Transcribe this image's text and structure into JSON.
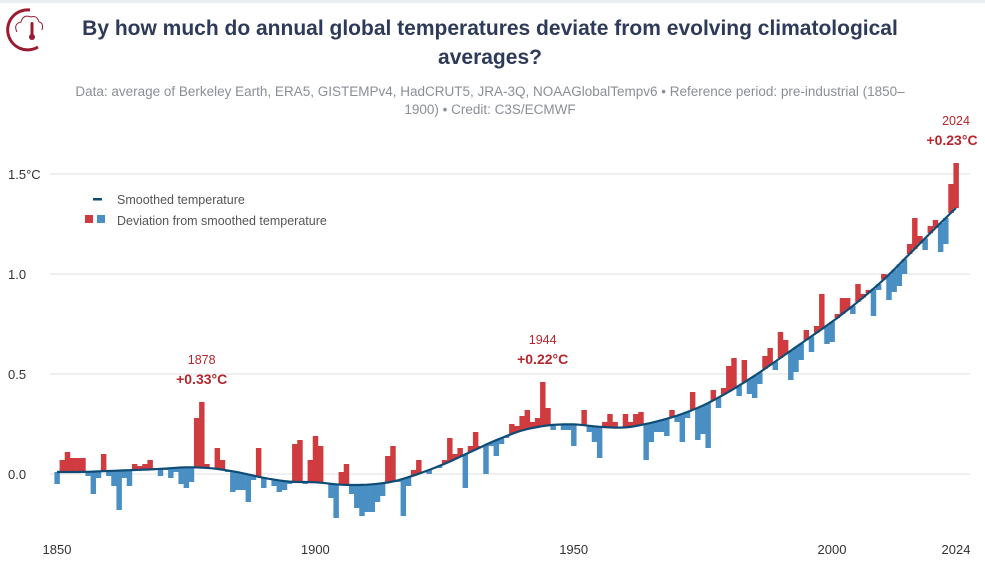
{
  "title_lines": [
    "By how much do annual global temperatures deviate from evolving climatological",
    "averages?"
  ],
  "subtitle_lines": [
    "Data: average of Berkeley Earth, ERA5, GISTEMPv4, HadCRUT5, JRA-3Q, NOAAGlobalTempv6 • Reference period: pre-industrial (1850–",
    "1900) • Credit: C3S/ECMWF"
  ],
  "colors": {
    "above": "#d03b3f",
    "below": "#4a8fc4",
    "smoothed": "#0f4c75",
    "title": "#2e3a59",
    "logo": "#9b1b30"
  },
  "logo_icon": "cloud-thermometer-icon",
  "chart_data": {
    "type": "bar",
    "xlabel": "",
    "ylabel": "",
    "xlim": [
      1850,
      2024
    ],
    "ylim": [
      -0.25,
      1.6
    ],
    "x_ticks": [
      "1850",
      "1900",
      "1950",
      "2000",
      "2024"
    ],
    "y_ticks": [
      {
        "value": 0,
        "label": "0.0"
      },
      {
        "value": 0.5,
        "label": "0.5"
      },
      {
        "value": 1.0,
        "label": "1.0"
      },
      {
        "value": 1.5,
        "label": "1.5°C"
      }
    ],
    "grid": true,
    "legend_placement": "top-left",
    "legend": {
      "smoothed": "Smoothed temperature",
      "deviation": "Deviation from smoothed temperature"
    },
    "start_year": 1850,
    "annual_anomaly": [
      -0.05,
      0.07,
      0.11,
      0.08,
      0.08,
      0.08,
      -0.01,
      -0.1,
      -0.02,
      0.1,
      -0.01,
      -0.06,
      -0.18,
      -0.02,
      -0.06,
      0.05,
      0.04,
      0.05,
      0.07,
      0.03,
      -0.01,
      0.02,
      -0.02,
      0.01,
      -0.05,
      -0.07,
      -0.04,
      0.28,
      0.36,
      0.05,
      0.03,
      0.13,
      0.07,
      0.01,
      -0.09,
      -0.08,
      -0.08,
      -0.14,
      -0.03,
      0.13,
      -0.07,
      -0.02,
      -0.06,
      -0.09,
      -0.08,
      -0.05,
      0.15,
      0.17,
      -0.05,
      0.07,
      0.19,
      0.14,
      -0.05,
      -0.12,
      -0.22,
      0.01,
      0.05,
      -0.1,
      -0.17,
      -0.21,
      -0.19,
      -0.19,
      -0.14,
      -0.11,
      0.09,
      0.14,
      -0.04,
      -0.21,
      -0.06,
      0.02,
      0.07,
      0.01,
      0.0,
      0.03,
      0.03,
      0.07,
      0.18,
      0.1,
      0.13,
      -0.07,
      0.14,
      0.21,
      0.14,
      0.0,
      0.14,
      0.09,
      0.15,
      0.18,
      0.25,
      0.24,
      0.29,
      0.32,
      0.26,
      0.28,
      0.46,
      0.33,
      0.22,
      0.25,
      0.22,
      0.22,
      0.14,
      0.25,
      0.32,
      0.21,
      0.16,
      0.08,
      0.26,
      0.3,
      0.26,
      0.23,
      0.3,
      0.26,
      0.3,
      0.31,
      0.07,
      0.16,
      0.21,
      0.21,
      0.19,
      0.32,
      0.26,
      0.16,
      0.28,
      0.41,
      0.17,
      0.2,
      0.13,
      0.42,
      0.33,
      0.43,
      0.54,
      0.58,
      0.39,
      0.57,
      0.4,
      0.38,
      0.45,
      0.59,
      0.63,
      0.52,
      0.71,
      0.67,
      0.47,
      0.51,
      0.57,
      0.72,
      0.61,
      0.74,
      0.9,
      0.65,
      0.66,
      0.8,
      0.88,
      0.88,
      0.8,
      0.95,
      0.9,
      0.92,
      0.79,
      0.92,
      1.0,
      0.87,
      0.91,
      0.94,
      1.0,
      1.15,
      1.28,
      1.19,
      1.12,
      1.24,
      1.27,
      1.11,
      1.15,
      1.45,
      1.555
    ],
    "smoothed": {
      "years": [
        1850,
        1855,
        1860,
        1865,
        1870,
        1875,
        1880,
        1885,
        1890,
        1895,
        1900,
        1905,
        1910,
        1915,
        1920,
        1925,
        1930,
        1935,
        1940,
        1945,
        1950,
        1955,
        1960,
        1965,
        1970,
        1975,
        1980,
        1985,
        1990,
        1995,
        2000,
        2005,
        2010,
        2015,
        2020,
        2024
      ],
      "values": [
        0.01,
        0.01,
        0.015,
        0.02,
        0.025,
        0.035,
        0.03,
        0.01,
        -0.02,
        -0.04,
        -0.04,
        -0.055,
        -0.055,
        -0.04,
        0.0,
        0.05,
        0.11,
        0.17,
        0.22,
        0.245,
        0.25,
        0.235,
        0.23,
        0.255,
        0.29,
        0.34,
        0.41,
        0.49,
        0.58,
        0.67,
        0.76,
        0.86,
        0.97,
        1.1,
        1.23,
        1.33
      ]
    },
    "annotations": [
      {
        "year": "1878",
        "value": 0.36,
        "label": "+0.33°C"
      },
      {
        "year": "1944",
        "value": 0.46,
        "label": "+0.22°C"
      },
      {
        "year": "2024",
        "value": 1.555,
        "label": "+0.23°C"
      }
    ]
  }
}
